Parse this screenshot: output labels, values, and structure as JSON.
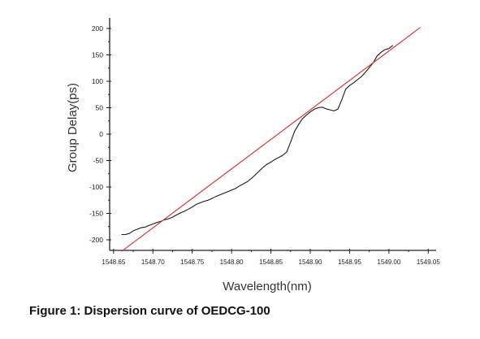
{
  "caption": "Figure 1: Dispersion curve of OEDCG-100",
  "chart_data": {
    "type": "line",
    "xlabel": "Wavelength(nm)",
    "ylabel": "Group Delay(ps)",
    "xlim": [
      1548.645,
      1549.06
    ],
    "ylim": [
      -220,
      220
    ],
    "x_ticks": [
      1548.65,
      1548.7,
      1548.75,
      1548.8,
      1548.85,
      1548.9,
      1548.95,
      1549.0,
      1549.05
    ],
    "x_tick_labels": [
      "1548.65",
      "1548.70",
      "1548.75",
      "1548.80",
      "1548.85",
      "1548.90",
      "1548.95",
      "1549.00",
      "1549.05"
    ],
    "y_ticks": [
      -200,
      -150,
      -100,
      -50,
      0,
      50,
      100,
      150,
      200
    ],
    "y_tick_labels": [
      "-200",
      "-150",
      "-100",
      "-50",
      "0",
      "50",
      "100",
      "150",
      "200"
    ],
    "grid": false,
    "legend": "none",
    "series": [
      {
        "color": "#1a1a1a",
        "x": [
          1548.66,
          1548.665,
          1548.67,
          1548.675,
          1548.68,
          1548.685,
          1548.69,
          1548.695,
          1548.7,
          1548.705,
          1548.71,
          1548.715,
          1548.72,
          1548.725,
          1548.73,
          1548.735,
          1548.74,
          1548.745,
          1548.75,
          1548.755,
          1548.76,
          1548.765,
          1548.77,
          1548.775,
          1548.78,
          1548.785,
          1548.79,
          1548.795,
          1548.8,
          1548.805,
          1548.81,
          1548.815,
          1548.82,
          1548.825,
          1548.83,
          1548.835,
          1548.84,
          1548.845,
          1548.85,
          1548.855,
          1548.86,
          1548.865,
          1548.87,
          1548.875,
          1548.88,
          1548.885,
          1548.89,
          1548.895,
          1548.9,
          1548.905,
          1548.91,
          1548.915,
          1548.92,
          1548.925,
          1548.93,
          1548.935,
          1548.94,
          1548.945,
          1548.95,
          1548.955,
          1548.96,
          1548.965,
          1548.97,
          1548.975,
          1548.98,
          1548.985,
          1548.99,
          1548.995,
          1549.0,
          1549.005
        ],
        "y": [
          -190,
          -190,
          -188,
          -183,
          -180,
          -177,
          -176,
          -173,
          -170,
          -167,
          -165,
          -162,
          -160,
          -157,
          -153,
          -149,
          -146,
          -142,
          -138,
          -133,
          -130,
          -127,
          -125,
          -122,
          -118,
          -115,
          -112,
          -109,
          -106,
          -103,
          -98,
          -94,
          -90,
          -84,
          -77,
          -70,
          -63,
          -57,
          -53,
          -48,
          -44,
          -40,
          -34,
          -15,
          5,
          18,
          29,
          36,
          42,
          47,
          50,
          51,
          48,
          46,
          44,
          47,
          65,
          85,
          92,
          97,
          103,
          109,
          117,
          126,
          135,
          148,
          155,
          160,
          162,
          168
        ]
      },
      {
        "color": "#d23a3a",
        "x": [
          1548.66,
          1549.04
        ],
        "y": [
          -222,
          202
        ]
      }
    ]
  }
}
